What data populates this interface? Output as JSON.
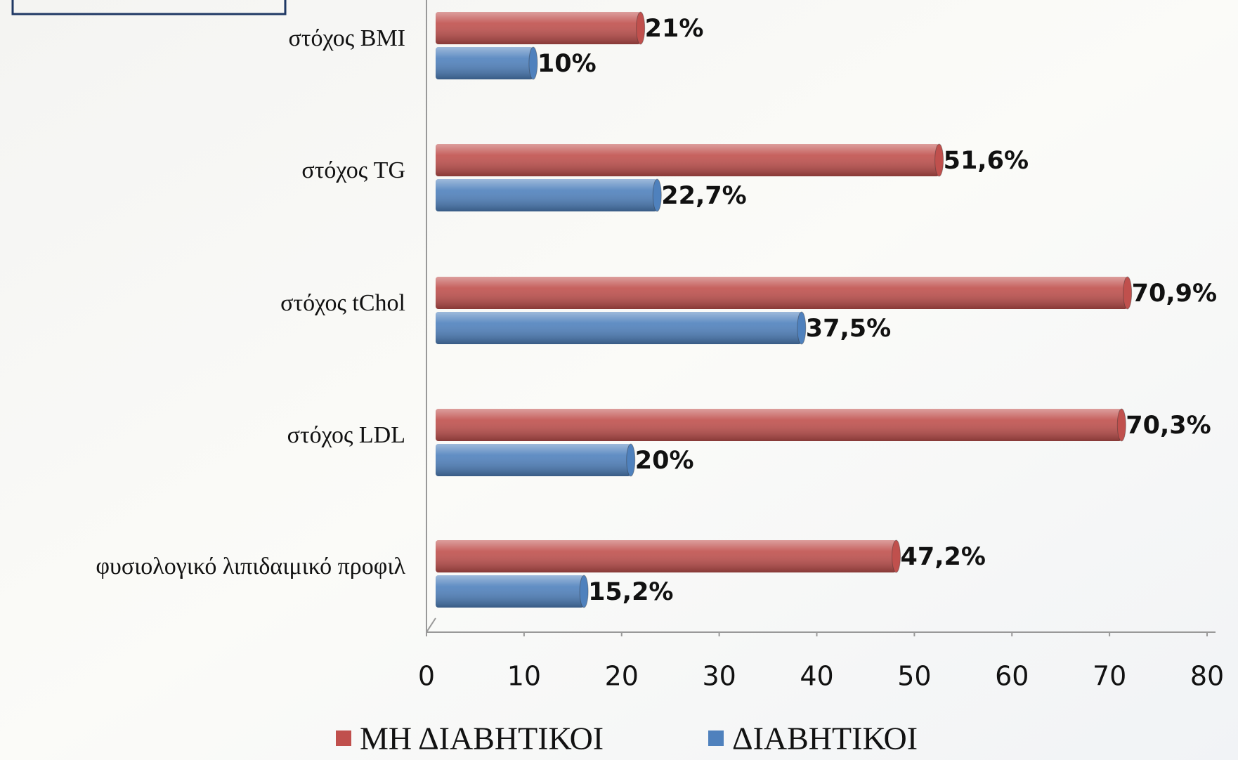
{
  "chart_data": {
    "type": "bar",
    "orientation": "horizontal",
    "categories": [
      "στόχος BMI",
      "στόχος TG",
      "στόχος tChol",
      "στόχος LDL",
      "φυσιολογικό λιπιδαιμικό προφιλ"
    ],
    "series": [
      {
        "name": "ΜΗ ΔΙΑΒΗΤΙΚΟΙ",
        "color": "#c0504d",
        "values": [
          21,
          51.6,
          70.9,
          70.3,
          47.2
        ],
        "value_labels": [
          "21%",
          "51,6%",
          "70,9%",
          "70,3%",
          "47,2%"
        ]
      },
      {
        "name": "ΔΙΑΒΗΤΙΚΟΙ",
        "color": "#4f81bd",
        "values": [
          10,
          22.7,
          37.5,
          20,
          15.2
        ],
        "value_labels": [
          "10%",
          "22,7%",
          "37,5%",
          "20%",
          "15,2%"
        ]
      }
    ],
    "xlim": [
      0,
      80
    ],
    "xticks": [
      0,
      10,
      20,
      30,
      40,
      50,
      60,
      70,
      80
    ],
    "legend": "bottom"
  }
}
